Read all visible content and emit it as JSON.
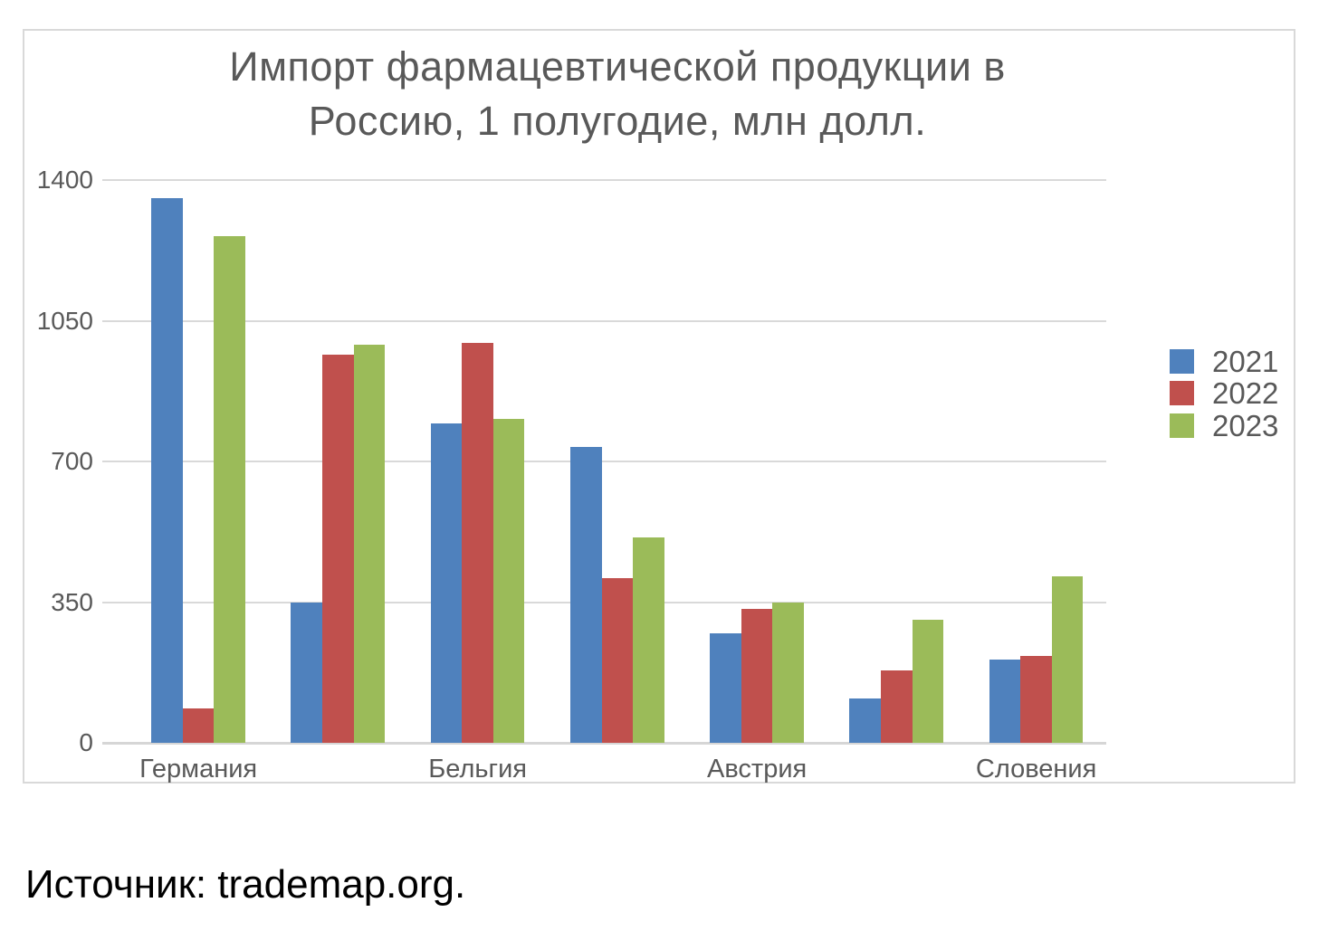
{
  "page": {
    "background": "#FFFFFF"
  },
  "chart": {
    "title_line1": "Импорт фармацевтической продукции в",
    "title_line2": "Россию, 1 полугодие, млн долл.",
    "text_color": "#595959",
    "grid_color": "#D9D9D9",
    "frame_border_color": "#D9D9D9"
  },
  "chart_data": {
    "type": "bar",
    "title": "Импорт фармацевтической продукции в Россию, 1 полугодие, млн долл.",
    "categories": [
      "Германия",
      "",
      "Бельгия",
      "",
      "Австрия",
      "",
      "Словения"
    ],
    "series": [
      {
        "name": "2021",
        "color": "#4F81BD",
        "values": [
          1355,
          350,
          795,
          735,
          272,
          110,
          208
        ]
      },
      {
        "name": "2022",
        "color": "#C0504D",
        "values": [
          85,
          965,
          995,
          410,
          333,
          180,
          217
        ]
      },
      {
        "name": "2023",
        "color": "#9BBB59",
        "values": [
          1260,
          990,
          805,
          510,
          350,
          307,
          414
        ]
      }
    ],
    "ylim": [
      0,
      1400
    ],
    "yticks": [
      0,
      350,
      700,
      1050,
      1400
    ],
    "grid": true,
    "legend_position": "right",
    "legend_entries": [
      "2021",
      "2022",
      "2023"
    ]
  },
  "source": {
    "text": "Источник: trademap.org."
  }
}
